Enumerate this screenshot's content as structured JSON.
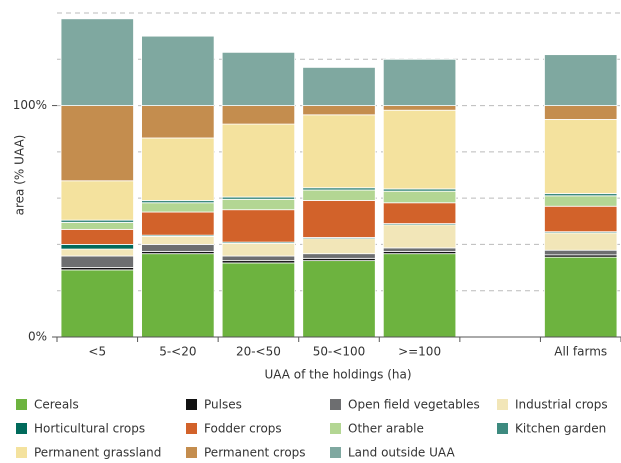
{
  "chart_data": {
    "type": "stacked_bar",
    "xlabel": "UAA of the holdings (ha)",
    "ylabel": "area (% UAA)",
    "categories": [
      "<5",
      "5-<20",
      "20-<50",
      "50-<100",
      ">=100",
      null,
      "All farms"
    ],
    "ylim": [
      0,
      140
    ],
    "yticks": [
      {
        "value": 0,
        "label": "0%"
      },
      {
        "value": 100,
        "label": "100%"
      }
    ],
    "gridlines": [
      20,
      40,
      60,
      80,
      100,
      120,
      140
    ],
    "grid": true,
    "legend": "bottom",
    "series": [
      {
        "name": "Cereals",
        "color": "#6db33f",
        "values": [
          29,
          36,
          32,
          33,
          36,
          null,
          34.5
        ]
      },
      {
        "name": "Pulses",
        "color": "#111111",
        "values": [
          1,
          1,
          1,
          1,
          1,
          null,
          1
        ]
      },
      {
        "name": "Open field vegetables",
        "color": "#6d6e70",
        "values": [
          5,
          3,
          2,
          2,
          1.5,
          null,
          2
        ]
      },
      {
        "name": "Industrial crops",
        "color": "#f2e6b8",
        "values": [
          3,
          3.5,
          5.5,
          6.5,
          10,
          null,
          7.5
        ]
      },
      {
        "name": "Horticultural crops",
        "color": "#006a5b",
        "values": [
          2,
          0.5,
          0.5,
          0.5,
          0.5,
          null,
          0.5
        ]
      },
      {
        "name": "Fodder crops",
        "color": "#d2622a",
        "values": [
          6.5,
          10,
          14,
          16,
          9,
          null,
          11
        ]
      },
      {
        "name": "Other arable",
        "color": "#b3d693",
        "values": [
          3,
          4,
          4.5,
          4.5,
          5,
          null,
          4.5
        ]
      },
      {
        "name": "Kitchen garden",
        "color": "#3d8a7f",
        "values": [
          1,
          1,
          1,
          1,
          1,
          null,
          1
        ]
      },
      {
        "name": "Permanent grassland",
        "color": "#f4e29e",
        "values": [
          17,
          27,
          31.5,
          31.5,
          34,
          null,
          32
        ]
      },
      {
        "name": "Permanent crops",
        "color": "#c48d4e",
        "values": [
          32.5,
          14,
          8,
          4,
          2,
          null,
          6
        ]
      },
      {
        "name": "Land outside UAA",
        "color": "#7fa8a0",
        "values": [
          37.5,
          30,
          23,
          16.5,
          20,
          null,
          22
        ]
      }
    ]
  }
}
